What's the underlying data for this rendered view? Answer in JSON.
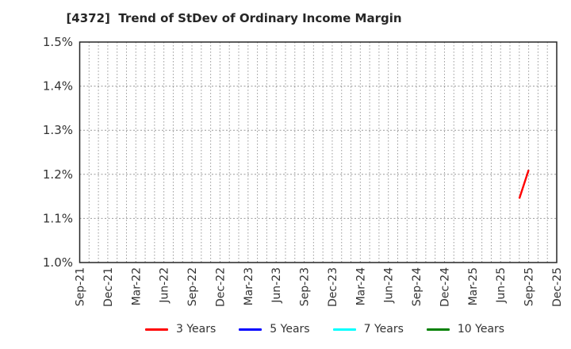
{
  "chart_data": {
    "type": "line",
    "title": "[4372]  Trend of StDev of Ordinary Income Margin",
    "xlabel": "",
    "ylabel": "",
    "ylim": [
      1.0,
      1.5
    ],
    "y_unit": "%",
    "y_ticks": [
      "1.0%",
      "1.1%",
      "1.2%",
      "1.3%",
      "1.4%",
      "1.5%"
    ],
    "x_ticks": [
      "Sep-21",
      "Dec-21",
      "Mar-22",
      "Jun-22",
      "Sep-22",
      "Dec-22",
      "Mar-23",
      "Jun-23",
      "Sep-23",
      "Dec-23",
      "Mar-24",
      "Jun-24",
      "Sep-24",
      "Dec-24",
      "Mar-25",
      "Jun-25",
      "Sep-25",
      "Dec-25"
    ],
    "x_tick_rotation": 90,
    "x_tick_interval_months": 3,
    "grid": {
      "style": "dotted",
      "color": "#999999",
      "vertical": "monthly",
      "horizontal": "every 0.1%"
    },
    "legend_position": "bottom",
    "series": [
      {
        "name": "3 Years",
        "color": "#ff0000",
        "points": [
          {
            "month": "Aug-25",
            "value": 1.145
          },
          {
            "month": "Sep-25",
            "value": 1.21
          }
        ]
      },
      {
        "name": "5 Years",
        "color": "#0000ff",
        "points": []
      },
      {
        "name": "7 Years",
        "color": "#00ffff",
        "points": []
      },
      {
        "name": "10 Years",
        "color": "#008000",
        "points": []
      }
    ],
    "axis_color": "#262626",
    "text_color": "#333333",
    "background": "#ffffff"
  }
}
